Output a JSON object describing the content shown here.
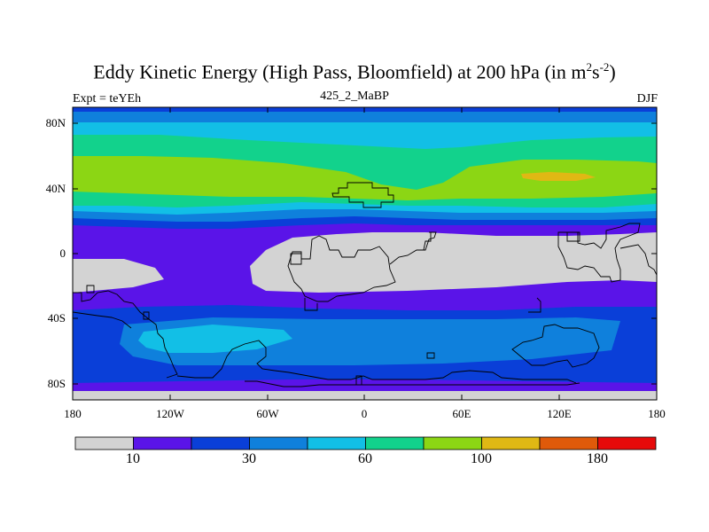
{
  "title": "Eddy Kinetic Energy (High Pass, Bloomfield) at 200 hPa (in m",
  "title_sup1": "2",
  "title_mid": "s",
  "title_sup2": "-2",
  "title_end": ")",
  "subtitle": "425_2_MaBP",
  "expt_label": "Expt = teYEh",
  "season": "DJF",
  "lat_ticks": [
    "80N",
    "40N",
    "0",
    "40S",
    "80S"
  ],
  "lon_ticks": [
    "180",
    "120W",
    "60W",
    "0",
    "60E",
    "120E",
    "180"
  ],
  "colorbar": {
    "colors": [
      "#d3d3d3",
      "#5a14e8",
      "#0a3fd8",
      "#0f80dc",
      "#12bfe6",
      "#12d28c",
      "#8cd614",
      "#e0b814",
      "#e05a0a",
      "#e60a0a"
    ],
    "labels": [
      "10",
      "30",
      "60",
      "100",
      "180"
    ]
  },
  "map": {
    "projection": "cylindrical-equidistant",
    "lon_range": [
      -180,
      180
    ],
    "lat_range": [
      -90,
      90
    ],
    "field": "eddy kinetic energy"
  }
}
